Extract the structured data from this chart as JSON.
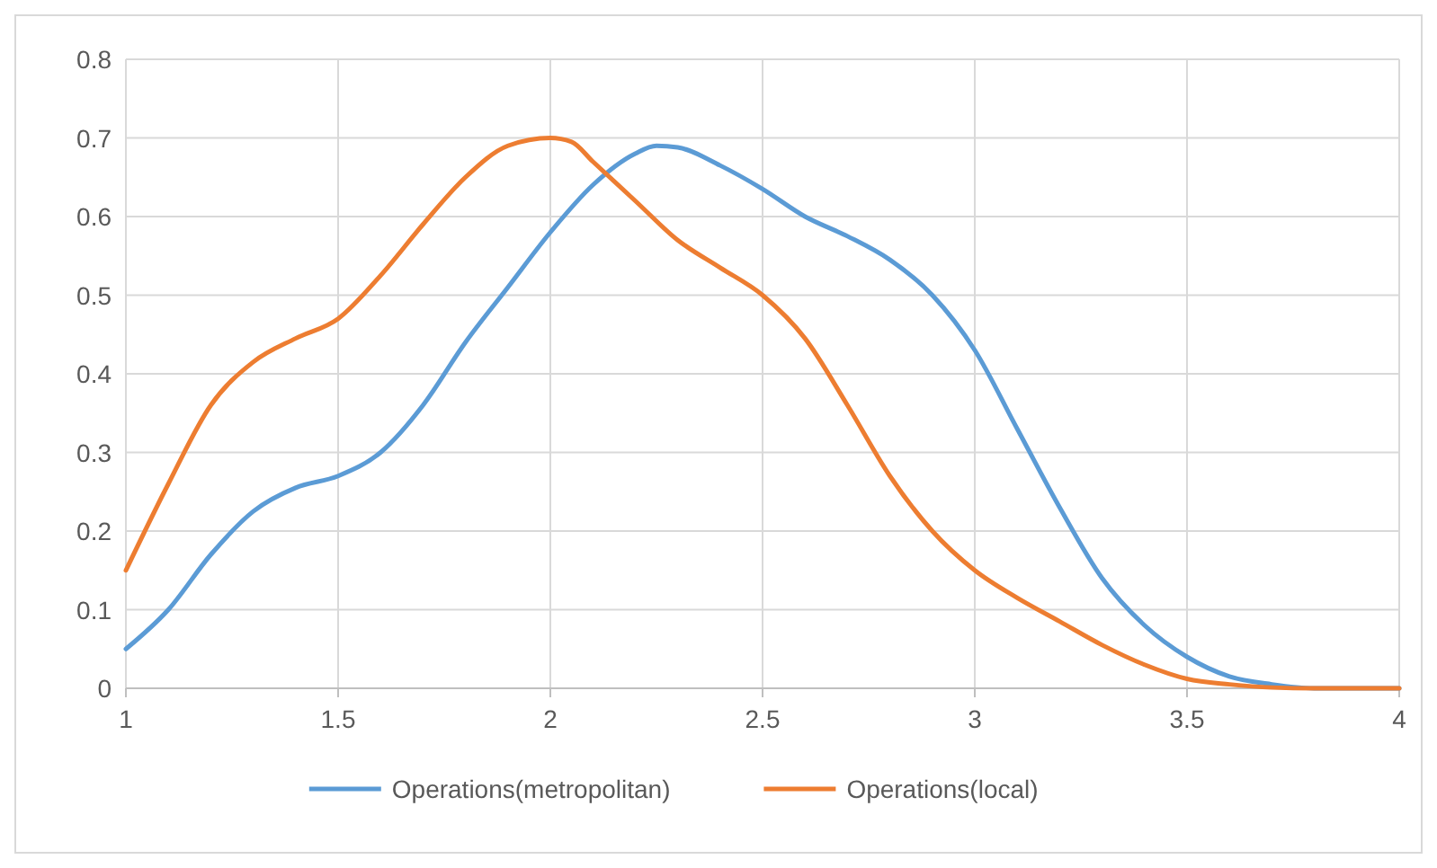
{
  "chart_data": {
    "type": "line",
    "x": [
      1,
      1.1,
      1.2,
      1.3,
      1.4,
      1.5,
      1.6,
      1.7,
      1.8,
      1.9,
      2,
      2.1,
      2.2,
      2.25,
      2.3,
      2.4,
      2.5,
      2.6,
      2.7,
      2.8,
      2.9,
      3,
      3.1,
      3.2,
      3.3,
      3.4,
      3.5,
      3.6,
      3.7,
      3.8,
      4
    ],
    "series": [
      {
        "name": "Operations(metropolitan)",
        "color": "#5b9bd5",
        "values": [
          0.05,
          0.1,
          0.17,
          0.225,
          0.255,
          0.27,
          0.3,
          0.36,
          0.44,
          0.51,
          0.58,
          0.64,
          0.68,
          0.69,
          0.688,
          0.665,
          0.635,
          0.6,
          0.575,
          0.545,
          0.5,
          0.43,
          0.33,
          0.23,
          0.14,
          0.08,
          0.04,
          0.015,
          0.005,
          0,
          0
        ]
      },
      {
        "name": "Operations(local)",
        "color": "#ed7d31",
        "x": [
          1,
          1.1,
          1.2,
          1.3,
          1.4,
          1.5,
          1.6,
          1.7,
          1.8,
          1.9,
          2,
          2.05,
          2.1,
          2.2,
          2.3,
          2.4,
          2.5,
          2.6,
          2.7,
          2.8,
          2.9,
          3,
          3.1,
          3.2,
          3.3,
          3.4,
          3.5,
          3.6,
          3.7,
          3.8,
          4
        ],
        "values": [
          0.15,
          0.26,
          0.36,
          0.415,
          0.445,
          0.47,
          0.525,
          0.59,
          0.65,
          0.69,
          0.7,
          0.695,
          0.67,
          0.62,
          0.57,
          0.535,
          0.5,
          0.445,
          0.36,
          0.27,
          0.2,
          0.15,
          0.115,
          0.085,
          0.055,
          0.03,
          0.012,
          0.005,
          0.001,
          0,
          0
        ]
      }
    ],
    "xlim": [
      1,
      4
    ],
    "xticks": [
      1,
      1.5,
      2,
      2.5,
      3,
      3.5,
      4
    ],
    "ylim": [
      0,
      0.8
    ],
    "yticks": [
      0,
      0.1,
      0.2,
      0.3,
      0.4,
      0.5,
      0.6,
      0.7,
      0.8
    ],
    "grid": true,
    "legend": "bottom",
    "marker": "none",
    "line_style": "solid"
  }
}
